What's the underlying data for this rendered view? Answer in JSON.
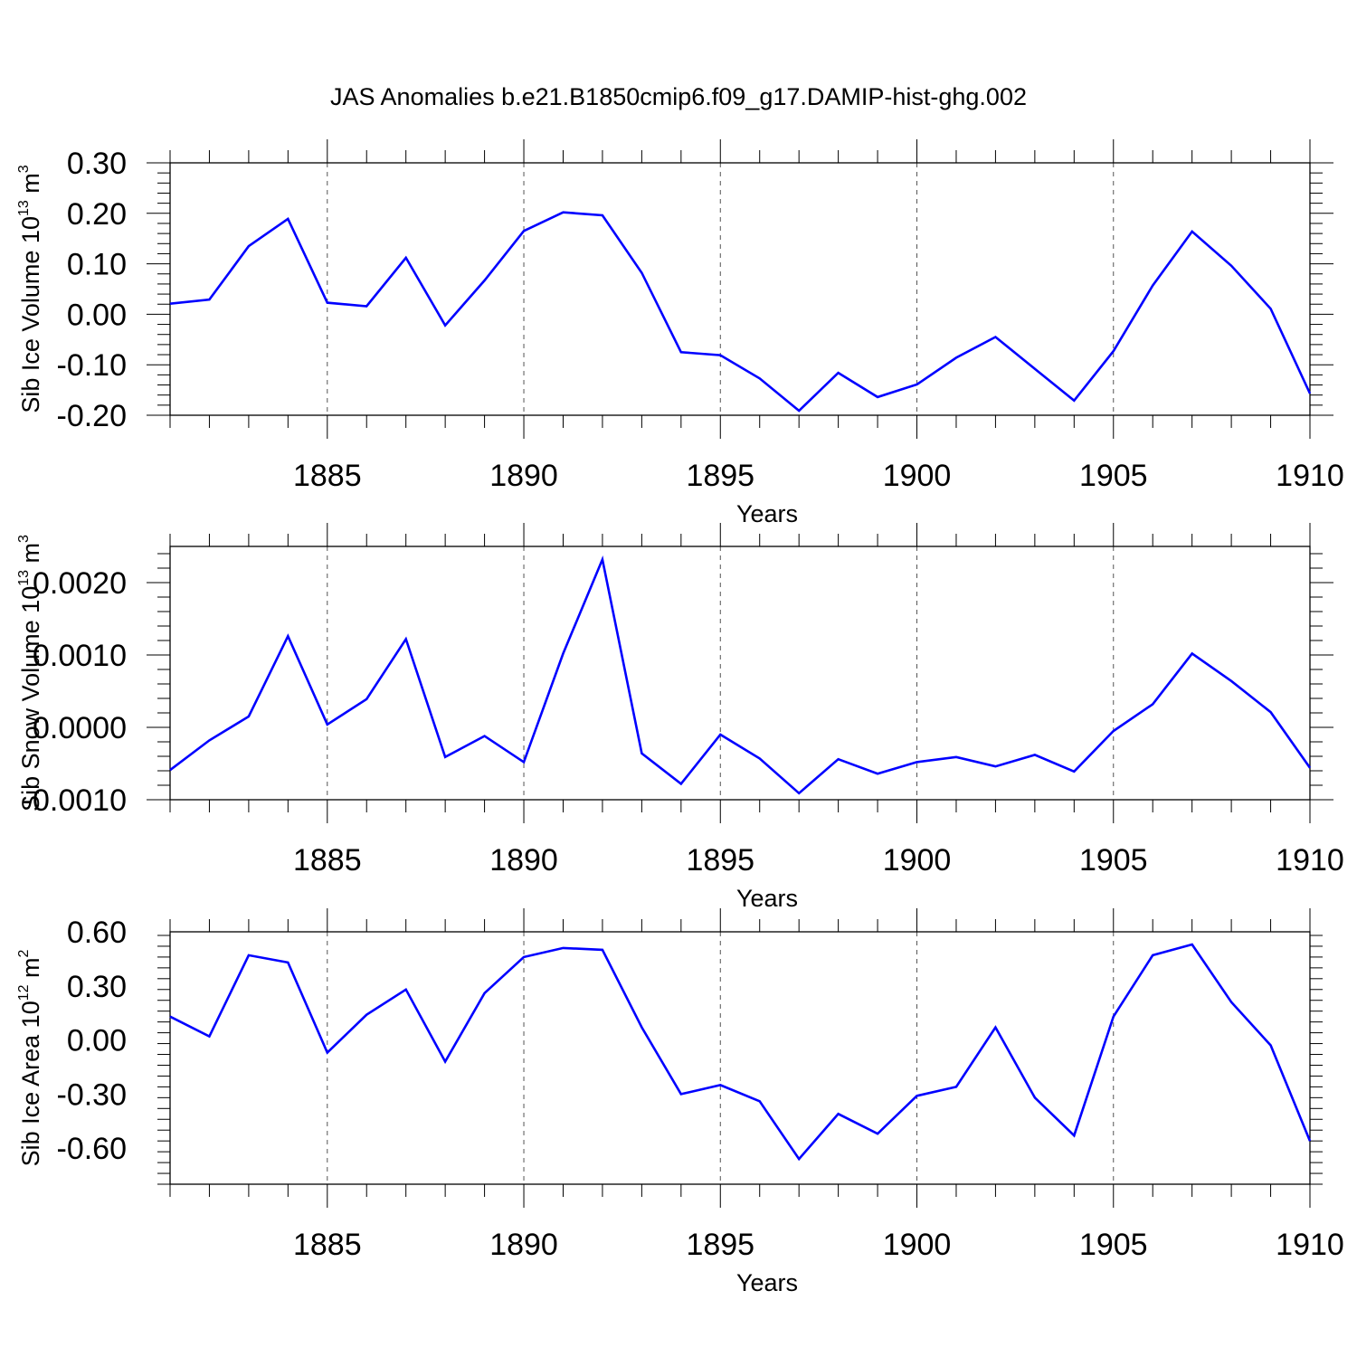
{
  "title": "JAS Anomalies b.e21.B1850cmip6.f09_g17.DAMIP-hist-ghg.002",
  "colors": {
    "line": "#0000ff",
    "axis": "#000000",
    "grid": "#555555",
    "background": "#ffffff"
  },
  "chart_data": [
    {
      "type": "line",
      "ylabel_main": "Sib Ice Volume 10",
      "ylabel_exp": "13",
      "ylabel_unit": " m",
      "ylabel_unit_exp": "3",
      "xlabel": "Years",
      "xlim": [
        1881,
        1910
      ],
      "ylim": [
        -0.2,
        0.3
      ],
      "xticks": [
        1885,
        1890,
        1895,
        1900,
        1905,
        1910
      ],
      "yticks": [
        0.3,
        0.2,
        0.1,
        0.0,
        -0.1,
        -0.2
      ],
      "ytick_labels": [
        "0.30",
        "0.20",
        "0.10",
        "0.00",
        "-0.10",
        "-0.20"
      ],
      "grid": "vertical dashed at major x ticks",
      "series": [
        {
          "name": "Sib Ice Volume",
          "x": [
            1881,
            1882,
            1883,
            1884,
            1885,
            1886,
            1887,
            1888,
            1889,
            1890,
            1891,
            1892,
            1893,
            1894,
            1895,
            1896,
            1897,
            1898,
            1899,
            1900,
            1901,
            1902,
            1903,
            1904,
            1905,
            1906,
            1907,
            1908,
            1909,
            1910
          ],
          "y": [
            0.021,
            0.029,
            0.135,
            0.189,
            0.023,
            0.016,
            0.112,
            -0.022,
            0.067,
            0.165,
            0.202,
            0.196,
            0.082,
            -0.075,
            -0.081,
            -0.127,
            -0.191,
            -0.116,
            -0.164,
            -0.139,
            -0.086,
            -0.045,
            -0.108,
            -0.171,
            -0.073,
            0.057,
            0.164,
            0.096,
            0.011,
            -0.157
          ]
        }
      ]
    },
    {
      "type": "line",
      "ylabel_main": "Sib Snow Volume 10",
      "ylabel_exp": "13",
      "ylabel_unit": " m",
      "ylabel_unit_exp": "3",
      "xlabel": "Years",
      "xlim": [
        1881,
        1910
      ],
      "ylim": [
        -0.001,
        0.0025
      ],
      "xticks": [
        1885,
        1890,
        1895,
        1900,
        1905,
        1910
      ],
      "yticks": [
        0.002,
        0.001,
        0.0,
        -0.001
      ],
      "ytick_labels": [
        "0.0020",
        "0.0010",
        "0.0000",
        "-0.0010"
      ],
      "grid": "vertical dashed at major x ticks",
      "series": [
        {
          "name": "Sib Snow Volume",
          "x": [
            1881,
            1882,
            1883,
            1884,
            1885,
            1886,
            1887,
            1888,
            1889,
            1890,
            1891,
            1892,
            1893,
            1894,
            1895,
            1896,
            1897,
            1898,
            1899,
            1900,
            1901,
            1902,
            1903,
            1904,
            1905,
            1906,
            1907,
            1908,
            1909,
            1910
          ],
          "y": [
            -0.00059,
            -0.00018,
            0.00015,
            0.00126,
            4e-05,
            0.00039,
            0.00122,
            -0.00041,
            -0.00012,
            -0.00048,
            0.00102,
            0.00232,
            -0.00036,
            -0.00078,
            -0.0001,
            -0.00043,
            -0.00091,
            -0.00044,
            -0.00064,
            -0.00048,
            -0.00041,
            -0.00054,
            -0.00038,
            -0.00061,
            -5e-05,
            0.00032,
            0.00102,
            0.00064,
            0.00021,
            -0.00056
          ]
        }
      ]
    },
    {
      "type": "line",
      "ylabel_main": "Sib Ice Area 10",
      "ylabel_exp": "12",
      "ylabel_unit": " m",
      "ylabel_unit_exp": "2",
      "xlabel": "Years",
      "xlim": [
        1881,
        1910
      ],
      "ylim": [
        -0.8,
        0.6
      ],
      "xticks": [
        1885,
        1890,
        1895,
        1900,
        1905,
        1910
      ],
      "yticks": [
        0.6,
        0.3,
        0.0,
        -0.3,
        -0.6
      ],
      "ytick_labels": [
        "0.60",
        "0.30",
        "0.00",
        "-0.30",
        "-0.60"
      ],
      "grid": "vertical dashed at major x ticks",
      "series": [
        {
          "name": "Sib Ice Area",
          "x": [
            1881,
            1882,
            1883,
            1884,
            1885,
            1886,
            1887,
            1888,
            1889,
            1890,
            1891,
            1892,
            1893,
            1894,
            1895,
            1896,
            1897,
            1898,
            1899,
            1900,
            1901,
            1902,
            1903,
            1904,
            1905,
            1906,
            1907,
            1908,
            1909,
            1910
          ],
          "y": [
            0.13,
            0.02,
            0.47,
            0.43,
            -0.07,
            0.14,
            0.28,
            -0.12,
            0.26,
            0.46,
            0.51,
            0.5,
            0.07,
            -0.3,
            -0.25,
            -0.34,
            -0.66,
            -0.41,
            -0.52,
            -0.31,
            -0.26,
            0.07,
            -0.32,
            -0.53,
            0.13,
            0.47,
            0.53,
            0.21,
            -0.03,
            -0.56
          ]
        }
      ]
    }
  ]
}
